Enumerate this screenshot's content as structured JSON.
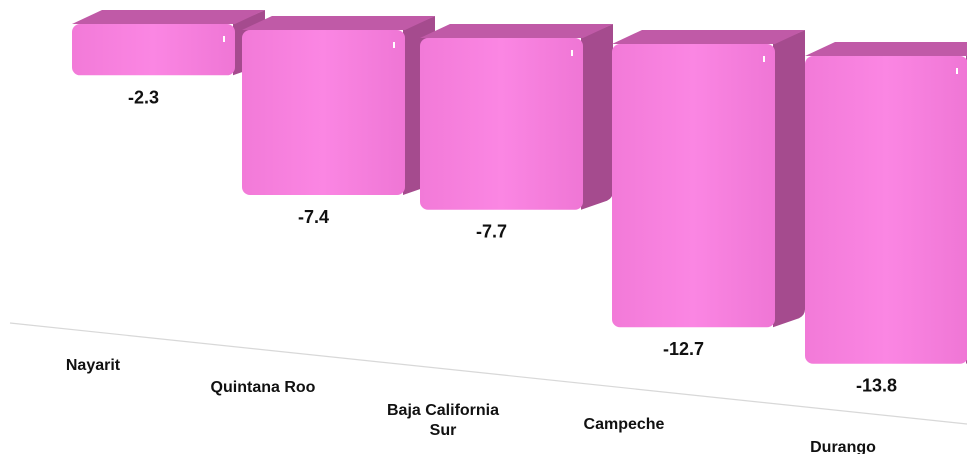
{
  "chart_data": {
    "type": "bar",
    "categories": [
      "Nayarit",
      "Quintana Roo",
      "Baja California Sur",
      "Campeche",
      "Durango"
    ],
    "category_lines": [
      [
        "Nayarit"
      ],
      [
        "Quintana Roo"
      ],
      [
        "Baja California",
        "Sur"
      ],
      [
        "Campeche"
      ],
      [
        "Durango"
      ]
    ],
    "values": [
      -2.3,
      -7.4,
      -7.7,
      -12.7,
      -13.8
    ],
    "value_labels": [
      "-2.3",
      "-7.4",
      "-7.7",
      "-12.7",
      "-13.8"
    ],
    "ylim": [
      -15,
      0
    ],
    "bar_style": "3d",
    "grid": false,
    "legend": "none",
    "colors": {
      "front": "#f57bdc",
      "side": "#a54b8e",
      "top": "#c05aa7",
      "axis": "#d8d8d8"
    }
  }
}
